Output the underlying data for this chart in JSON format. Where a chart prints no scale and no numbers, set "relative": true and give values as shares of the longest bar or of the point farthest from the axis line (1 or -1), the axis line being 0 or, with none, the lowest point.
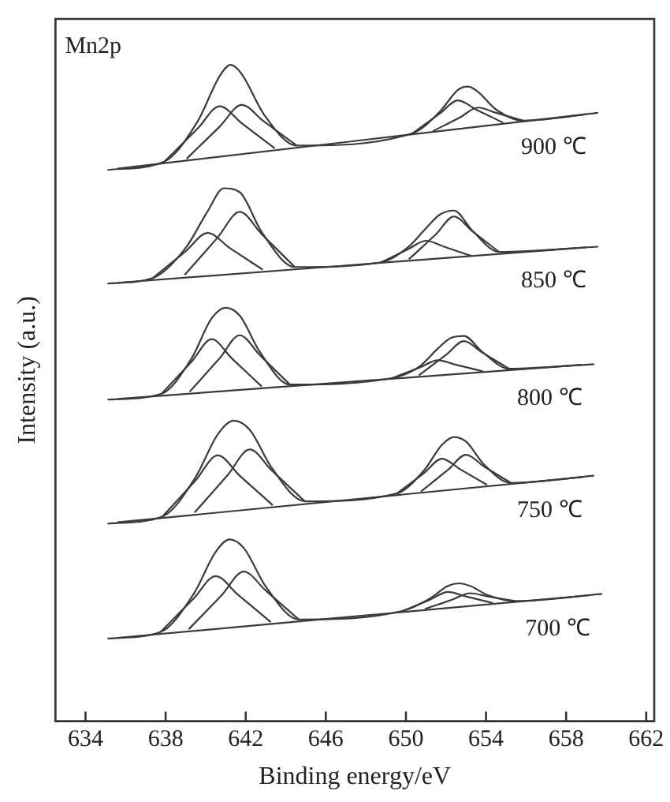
{
  "chart_data": {
    "type": "line",
    "relative": true,
    "xlabel": "Binding energy/eV",
    "ylabel": "Intensity (a.u.)",
    "xlim": [
      632.5,
      662.4
    ],
    "xticks": [
      634,
      638,
      642,
      646,
      650,
      654,
      658,
      662
    ],
    "grid": false,
    "legend": false,
    "marker": "none",
    "line_style": "solid",
    "annotations": [
      "Mn2p",
      "900 ℃",
      "850 ℃",
      "800 ℃",
      "750 ℃",
      "700 ℃"
    ],
    "series": [
      {
        "color": "#3a3a3a",
        "x": [
          635.1,
          637.95,
          639.6,
          640.7,
          641.25,
          641.8,
          642.9,
          644.55,
          650.35,
          651.7,
          652.6,
          653.1,
          653.6,
          654.5,
          655.85,
          659.6
        ],
        "values": [
          0.84,
          0.853,
          0.914,
          0.983,
          1,
          0.986,
          0.925,
          0.877,
          0.896,
          0.929,
          0.962,
          0.967,
          0.959,
          0.932,
          0.915,
          0.927
        ]
      },
      {
        "color": "#3a3a3a",
        "x": [
          635.6,
          659.0
        ],
        "values": [
          0.842,
          0.925
        ]
      },
      {
        "color": "#3a3a3a",
        "x": [
          637.95,
          639.6,
          640.7,
          641.8,
          643.45
        ],
        "values": [
          0.853,
          0.903,
          0.937,
          0.911,
          0.873
        ]
      },
      {
        "color": "#3a3a3a",
        "x": [
          639.05,
          640.7,
          641.8,
          642.9,
          644.55
        ],
        "values": [
          0.857,
          0.906,
          0.939,
          0.914,
          0.877
        ]
      },
      {
        "color": "#3a3a3a",
        "x": [
          650.35,
          651.7,
          652.6,
          653.5,
          654.85
        ],
        "values": [
          0.896,
          0.926,
          0.946,
          0.932,
          0.912
        ]
      },
      {
        "color": "#3a3a3a",
        "x": [
          651.35,
          652.7,
          653.6,
          654.5,
          655.85
        ],
        "values": [
          0.899,
          0.92,
          0.935,
          0.927,
          0.915
        ]
      },
      {
        "color": "#3a3a3a",
        "x": [
          635.1,
          637.35,
          639.0,
          640.1,
          640.9,
          641.7,
          642.8,
          644.45,
          648.75,
          650.1,
          651.0,
          651.7,
          652.4,
          653.3,
          654.65,
          659.6
        ],
        "values": [
          0.667,
          0.675,
          0.721,
          0.777,
          0.812,
          0.806,
          0.745,
          0.692,
          0.699,
          0.722,
          0.751,
          0.772,
          0.778,
          0.748,
          0.715,
          0.723
        ]
      },
      {
        "color": "#3a3a3a",
        "x": [
          635.6,
          659.0
        ],
        "values": [
          0.668,
          0.722
        ]
      },
      {
        "color": "#3a3a3a",
        "x": [
          637.35,
          639.0,
          640.1,
          641.2,
          642.85
        ],
        "values": [
          0.675,
          0.716,
          0.744,
          0.721,
          0.688
        ]
      },
      {
        "color": "#3a3a3a",
        "x": [
          638.95,
          640.6,
          641.7,
          642.8,
          644.45
        ],
        "values": [
          0.68,
          0.737,
          0.776,
          0.742,
          0.692
        ]
      },
      {
        "color": "#3a3a3a",
        "x": [
          648.75,
          650.1,
          651.0,
          651.9,
          653.25
        ],
        "values": [
          0.699,
          0.719,
          0.732,
          0.723,
          0.709
        ]
      },
      {
        "color": "#3a3a3a",
        "x": [
          650.15,
          651.5,
          652.4,
          653.3,
          654.65
        ],
        "values": [
          0.704,
          0.742,
          0.769,
          0.747,
          0.715
        ]
      },
      {
        "color": "#3a3a3a",
        "x": [
          635.1,
          637.8,
          639.3,
          640.3,
          641.0,
          641.7,
          642.7,
          644.2,
          649.35,
          650.7,
          651.6,
          652.25,
          652.9,
          653.8,
          655.15,
          659.4
        ],
        "values": [
          0.49,
          0.499,
          0.553,
          0.614,
          0.63,
          0.618,
          0.563,
          0.513,
          0.523,
          0.541,
          0.568,
          0.584,
          0.587,
          0.563,
          0.537,
          0.544
        ]
      },
      {
        "color": "#3a3a3a",
        "x": [
          635.6,
          658.8
        ],
        "values": [
          0.491,
          0.543
        ]
      },
      {
        "color": "#3a3a3a",
        "x": [
          637.8,
          639.3,
          640.3,
          641.3,
          642.8
        ],
        "values": [
          0.499,
          0.548,
          0.582,
          0.553,
          0.51
        ]
      },
      {
        "color": "#3a3a3a",
        "x": [
          639.2,
          640.7,
          641.7,
          642.7,
          644.2
        ],
        "values": [
          0.502,
          0.553,
          0.588,
          0.558,
          0.513
        ]
      },
      {
        "color": "#3a3a3a",
        "x": [
          649.35,
          650.7,
          651.6,
          652.5,
          653.85
        ],
        "values": [
          0.523,
          0.539,
          0.55,
          0.543,
          0.533
        ]
      },
      {
        "color": "#3a3a3a",
        "x": [
          650.65,
          652.0,
          652.9,
          653.8,
          655.15
        ],
        "values": [
          0.527,
          0.558,
          0.579,
          0.562,
          0.537
        ]
      },
      {
        "color": "#3a3a3a",
        "x": [
          635.1,
          637.85,
          639.5,
          640.6,
          641.4,
          642.2,
          643.3,
          644.95,
          649.55,
          650.9,
          651.8,
          652.4,
          653.0,
          653.9,
          655.25,
          659.4
        ],
        "values": [
          0.301,
          0.312,
          0.372,
          0.437,
          0.458,
          0.444,
          0.386,
          0.335,
          0.347,
          0.382,
          0.421,
          0.433,
          0.426,
          0.391,
          0.363,
          0.374
        ]
      },
      {
        "color": "#3a3a3a",
        "x": [
          635.6,
          658.8
        ],
        "values": [
          0.303,
          0.372
        ]
      },
      {
        "color": "#3a3a3a",
        "x": [
          637.85,
          639.5,
          640.6,
          641.7,
          643.35
        ],
        "values": [
          0.312,
          0.367,
          0.405,
          0.374,
          0.329
        ]
      },
      {
        "color": "#3a3a3a",
        "x": [
          639.45,
          641.1,
          642.2,
          643.3,
          644.95
        ],
        "values": [
          0.318,
          0.375,
          0.414,
          0.382,
          0.335
        ]
      },
      {
        "color": "#3a3a3a",
        "x": [
          649.55,
          650.9,
          651.8,
          652.7,
          654.05
        ],
        "values": [
          0.347,
          0.378,
          0.4,
          0.384,
          0.36
        ]
      },
      {
        "color": "#3a3a3a",
        "x": [
          650.75,
          652.1,
          653.0,
          653.9,
          655.25
        ],
        "values": [
          0.35,
          0.383,
          0.406,
          0.388,
          0.363
        ]
      },
      {
        "color": "#3a3a3a",
        "x": [
          635.1,
          637.75,
          639.4,
          640.5,
          641.2,
          641.9,
          643.0,
          644.65,
          649.85,
          651.2,
          652.1,
          652.65,
          653.2,
          654.1,
          655.45,
          659.8
        ],
        "values": [
          0.126,
          0.136,
          0.194,
          0.258,
          0.277,
          0.264,
          0.205,
          0.155,
          0.168,
          0.187,
          0.206,
          0.21,
          0.206,
          0.192,
          0.183,
          0.194
        ]
      },
      {
        "color": "#3a3a3a",
        "x": [
          635.6,
          659.2
        ],
        "values": [
          0.127,
          0.192
        ]
      },
      {
        "color": "#3a3a3a",
        "x": [
          637.75,
          639.4,
          640.5,
          641.6,
          643.25
        ],
        "values": [
          0.136,
          0.187,
          0.221,
          0.193,
          0.151
        ]
      },
      {
        "color": "#3a3a3a",
        "x": [
          639.15,
          640.8,
          641.9,
          643.0,
          644.65
        ],
        "values": [
          0.14,
          0.192,
          0.228,
          0.199,
          0.155
        ]
      },
      {
        "color": "#3a3a3a",
        "x": [
          649.85,
          651.2,
          652.1,
          653.0,
          654.35
        ],
        "values": [
          0.168,
          0.185,
          0.197,
          0.19,
          0.18
        ]
      },
      {
        "color": "#3a3a3a",
        "x": [
          650.95,
          652.3,
          653.2,
          654.1,
          655.45
        ],
        "values": [
          0.171,
          0.185,
          0.195,
          0.19,
          0.183
        ]
      }
    ]
  }
}
